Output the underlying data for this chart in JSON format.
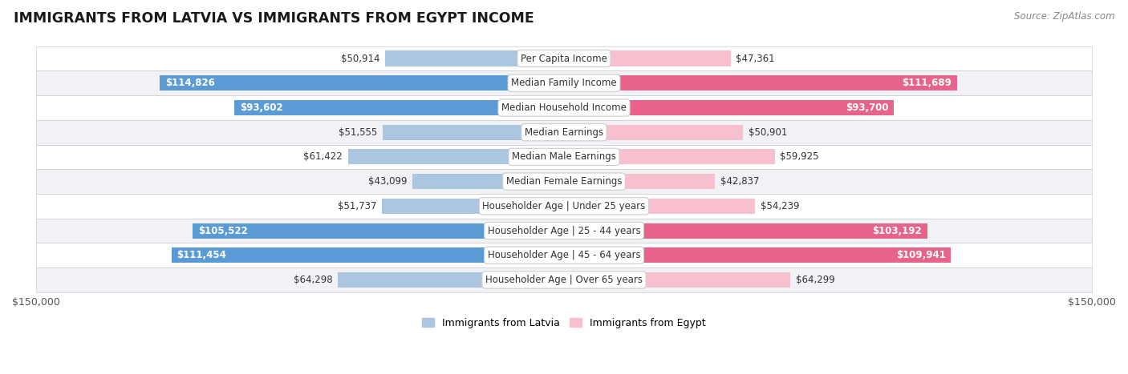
{
  "title": "IMMIGRANTS FROM LATVIA VS IMMIGRANTS FROM EGYPT INCOME",
  "source": "Source: ZipAtlas.com",
  "categories": [
    "Per Capita Income",
    "Median Family Income",
    "Median Household Income",
    "Median Earnings",
    "Median Male Earnings",
    "Median Female Earnings",
    "Householder Age | Under 25 years",
    "Householder Age | 25 - 44 years",
    "Householder Age | 45 - 64 years",
    "Householder Age | Over 65 years"
  ],
  "latvia_values": [
    50914,
    114826,
    93602,
    51555,
    61422,
    43099,
    51737,
    105522,
    111454,
    64298
  ],
  "egypt_values": [
    47361,
    111689,
    93700,
    50901,
    59925,
    42837,
    54239,
    103192,
    109941,
    64299
  ],
  "latvia_labels": [
    "$50,914",
    "$114,826",
    "$93,602",
    "$51,555",
    "$61,422",
    "$43,099",
    "$51,737",
    "$105,522",
    "$111,454",
    "$64,298"
  ],
  "egypt_labels": [
    "$47,361",
    "$111,689",
    "$93,700",
    "$50,901",
    "$59,925",
    "$42,837",
    "$54,239",
    "$103,192",
    "$109,941",
    "$64,299"
  ],
  "max_value": 150000,
  "latvia_color_light": "#adc6e0",
  "latvia_color_dark": "#5b9bd5",
  "egypt_color_light": "#f7c0cf",
  "egypt_color_dark": "#e8638a",
  "bar_height": 0.62,
  "row_bg_odd": "#f0f2f5",
  "row_bg_even": "#ffffff",
  "label_box_color": "#ffffff",
  "label_box_edge": "#cccccc",
  "title_fontsize": 12.5,
  "source_fontsize": 8.5,
  "value_fontsize": 8.5,
  "axis_fontsize": 9,
  "legend_fontsize": 9,
  "category_fontsize": 8.5,
  "large_threshold": 75000,
  "legend_label_latvia": "Immigrants from Latvia",
  "legend_label_egypt": "Immigrants from Egypt"
}
